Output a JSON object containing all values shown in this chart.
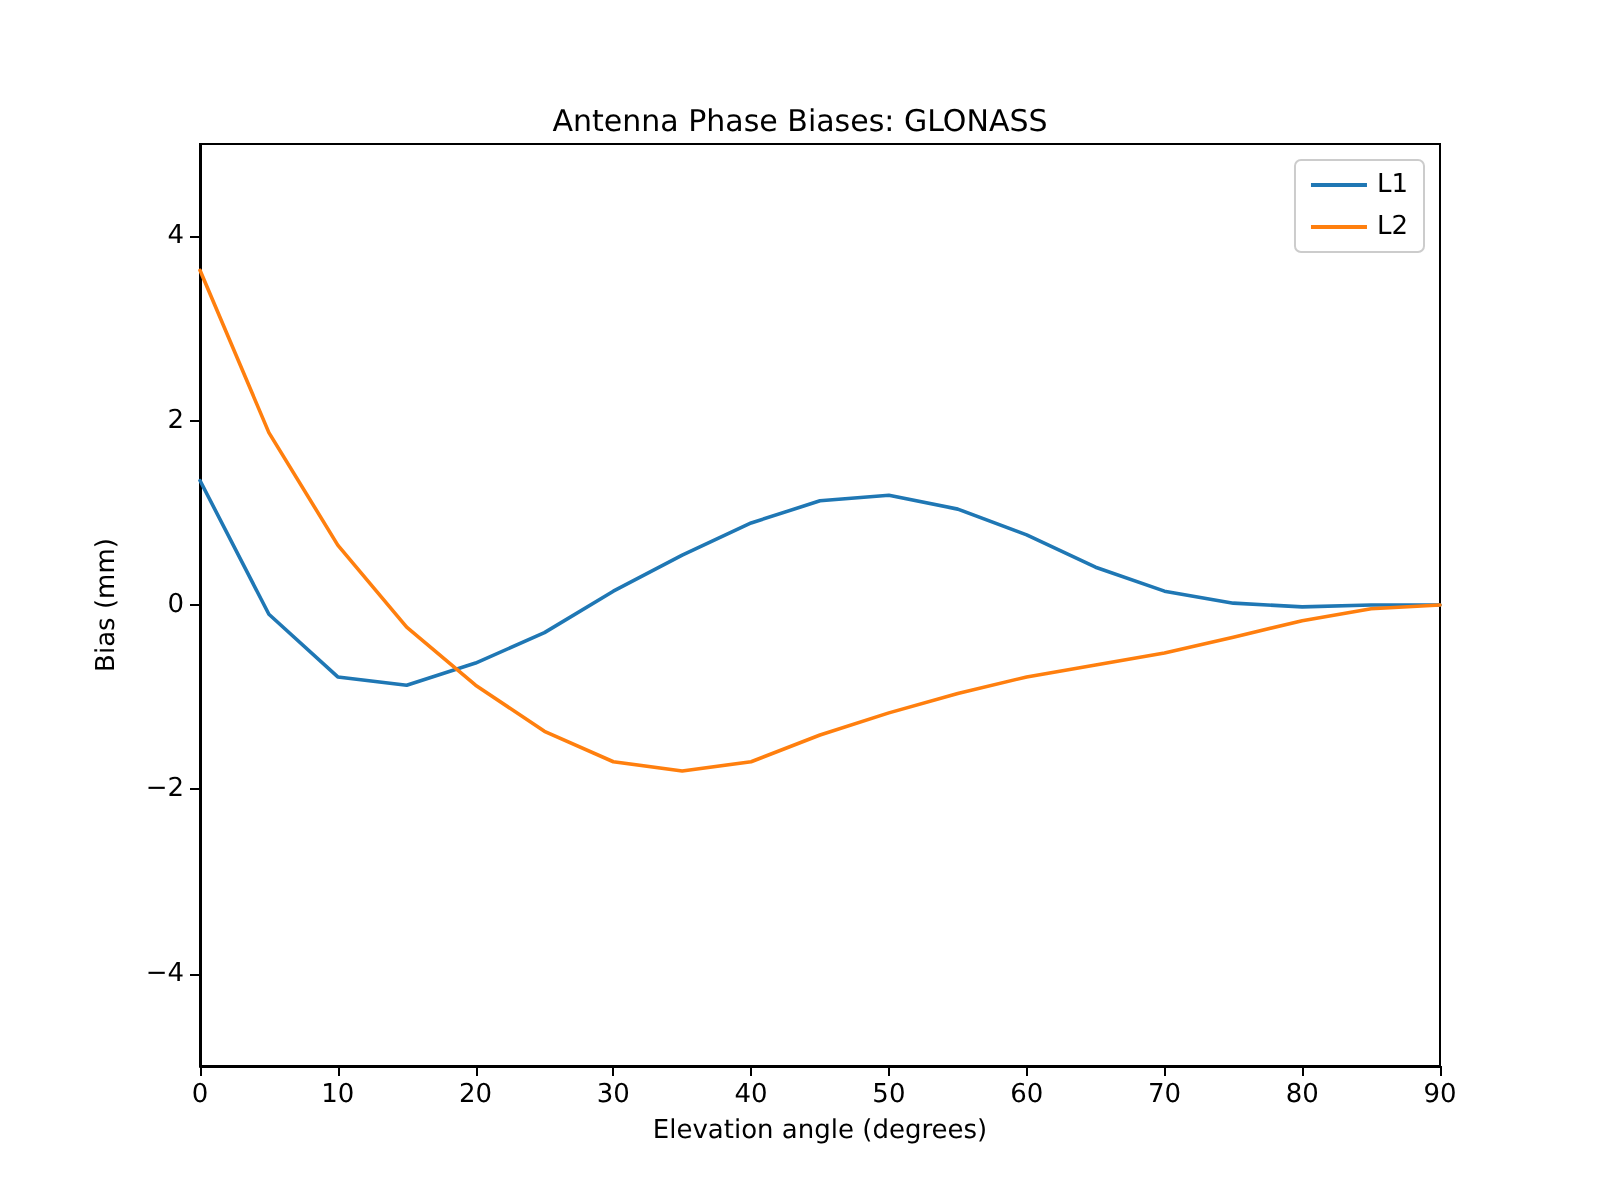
{
  "chart_data": {
    "type": "line",
    "title": "Antenna Phase Biases: GLONASS",
    "xlabel": "Elevation angle (degrees)",
    "ylabel": "Bias (mm)",
    "x": [
      0,
      5,
      10,
      15,
      20,
      25,
      30,
      35,
      40,
      45,
      50,
      55,
      60,
      65,
      70,
      75,
      80,
      85,
      90
    ],
    "series": [
      {
        "name": "L1",
        "color": "#1f77b4",
        "values": [
          1.35,
          -0.1,
          -0.78,
          -0.87,
          -0.63,
          -0.3,
          0.15,
          0.54,
          0.89,
          1.13,
          1.19,
          1.04,
          0.76,
          0.41,
          0.15,
          0.02,
          -0.02,
          0,
          0
        ]
      },
      {
        "name": "L2",
        "color": "#ff7f0e",
        "values": [
          3.63,
          1.87,
          0.65,
          -0.24,
          -0.87,
          -1.37,
          -1.7,
          -1.8,
          -1.7,
          -1.41,
          -1.17,
          -0.96,
          -0.78,
          -0.65,
          -0.52,
          -0.35,
          -0.17,
          -0.04,
          0
        ]
      }
    ],
    "xlim": [
      0,
      90
    ],
    "xticks": [
      0,
      10,
      20,
      30,
      40,
      50,
      60,
      70,
      80,
      90
    ],
    "ylim": [
      -5,
      5
    ],
    "yticks": [
      {
        "value": -4,
        "label": "−4"
      },
      {
        "value": -2,
        "label": "−2"
      },
      0,
      2,
      4
    ],
    "grid": false,
    "legend": "top right",
    "marker": "none",
    "line_style": "solid"
  }
}
